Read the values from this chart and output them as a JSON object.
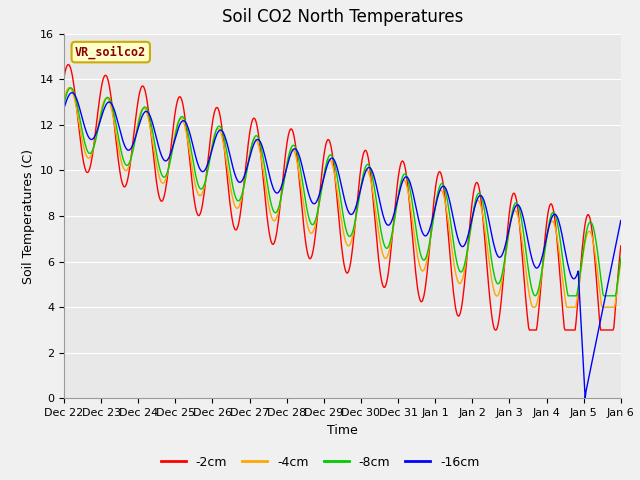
{
  "title": "Soil CO2 North Temperatures",
  "ylabel": "Soil Temperatures (C)",
  "xlabel": "Time",
  "legend_label": "VR_soilco2",
  "legend_entries": [
    "-2cm",
    "-4cm",
    "-8cm",
    "-16cm"
  ],
  "line_colors": [
    "#ff0000",
    "#ffa500",
    "#00cc00",
    "#0000ff"
  ],
  "ylim": [
    0,
    16
  ],
  "yticks": [
    0,
    2,
    4,
    6,
    8,
    10,
    12,
    14,
    16
  ],
  "bg_color": "#e8e8e8",
  "xtick_labels": [
    "Dec 22",
    "Dec 23",
    "Dec 24",
    "Dec 25",
    "Dec 26",
    "Dec 27",
    "Dec 28",
    "Dec 29",
    "Dec 30",
    "Dec 31",
    "Jan 1",
    "Jan 2",
    "Jan 3",
    "Jan 4",
    "Jan 5",
    "Jan 6"
  ],
  "title_fontsize": 12,
  "axis_fontsize": 9,
  "tick_fontsize": 8
}
